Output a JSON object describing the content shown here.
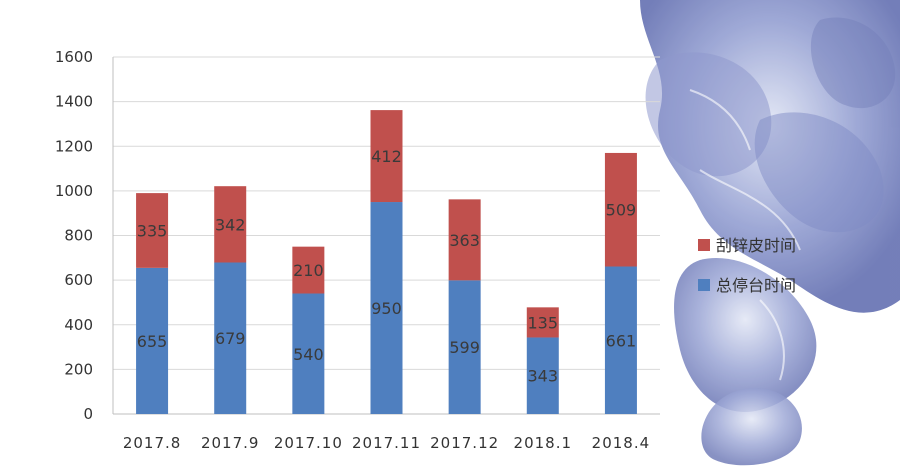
{
  "chart_data": {
    "type": "bar",
    "stacked": true,
    "categories": [
      "2017.8",
      "2017.9",
      "2017.10",
      "2017.11",
      "2017.12",
      "2018.1",
      "2018.4"
    ],
    "series": [
      {
        "name": "总停台时间",
        "values": [
          655,
          679,
          540,
          950,
          599,
          343,
          661
        ],
        "color": "#4f7fbf"
      },
      {
        "name": "刮锌皮时间",
        "values": [
          335,
          342,
          210,
          412,
          363,
          135,
          509
        ],
        "color": "#c0504d"
      }
    ],
    "ylim": [
      0,
      1600
    ],
    "yticks": [
      "0",
      "200",
      "400",
      "600",
      "800",
      "1000",
      "1200",
      "1400",
      "1600"
    ],
    "grid": "horizontal",
    "legend": "right",
    "data_labels": true,
    "background_decoration": "blue-floral-pattern"
  }
}
